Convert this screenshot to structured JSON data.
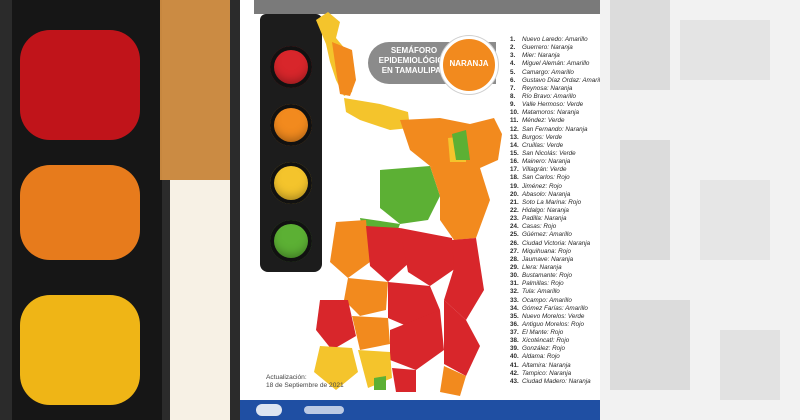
{
  "poster": {
    "title": "SEMÁFORO EPIDEMIOLÓGICO EN TAMAULIPAS",
    "status": "NARANJA",
    "update_label": "Actualización:",
    "update_date": "18 de Septiembre de 2021"
  },
  "colors": {
    "rojo": "#d8262b",
    "naranja": "#f28a1e",
    "amarillo": "#f4c42c",
    "verde": "#5cb034"
  },
  "traffic_light": {
    "lamps": [
      "red",
      "orange",
      "yellow",
      "green"
    ]
  },
  "municipalities": [
    {
      "n": "1.",
      "name": "Nuevo Laredo",
      "status": "Amarillo"
    },
    {
      "n": "2.",
      "name": "Guerrero",
      "status": "Naranja"
    },
    {
      "n": "3.",
      "name": "Mier",
      "status": "Naranja"
    },
    {
      "n": "4.",
      "name": "Miguel Alemán",
      "status": "Amarillo"
    },
    {
      "n": "5.",
      "name": "Camargo",
      "status": "Amarillo"
    },
    {
      "n": "6.",
      "name": "Gustavo Díaz Ordaz",
      "status": "Amarillo"
    },
    {
      "n": "7.",
      "name": "Reynosa",
      "status": "Naranja"
    },
    {
      "n": "8.",
      "name": "Río Bravo",
      "status": "Amarillo"
    },
    {
      "n": "9.",
      "name": "Valle Hermoso",
      "status": "Verde"
    },
    {
      "n": "10.",
      "name": "Matamoros",
      "status": "Naranja"
    },
    {
      "n": "11.",
      "name": "Méndez",
      "status": "Verde"
    },
    {
      "n": "12.",
      "name": "San Fernando",
      "status": "Naranja"
    },
    {
      "n": "13.",
      "name": "Burgos",
      "status": "Verde"
    },
    {
      "n": "14.",
      "name": "Cruillas",
      "status": "Verde"
    },
    {
      "n": "15.",
      "name": "San Nicolás",
      "status": "Verde"
    },
    {
      "n": "16.",
      "name": "Mainero",
      "status": "Naranja"
    },
    {
      "n": "17.",
      "name": "Villagrán",
      "status": "Verde"
    },
    {
      "n": "18.",
      "name": "San Carlos",
      "status": "Rojo"
    },
    {
      "n": "19.",
      "name": "Jiménez",
      "status": "Rojo"
    },
    {
      "n": "20.",
      "name": "Abasolo",
      "status": "Naranja"
    },
    {
      "n": "21.",
      "name": "Soto La Marina",
      "status": "Rojo"
    },
    {
      "n": "22.",
      "name": "Hidalgo",
      "status": "Naranja"
    },
    {
      "n": "23.",
      "name": "Padilla",
      "status": "Naranja"
    },
    {
      "n": "24.",
      "name": "Casas",
      "status": "Rojo"
    },
    {
      "n": "25.",
      "name": "Güémez",
      "status": "Amarillo"
    },
    {
      "n": "26.",
      "name": "Ciudad Victoria",
      "status": "Naranja"
    },
    {
      "n": "27.",
      "name": "Miquihuana",
      "status": "Rojo"
    },
    {
      "n": "28.",
      "name": "Jaumave",
      "status": "Naranja"
    },
    {
      "n": "29.",
      "name": "Llera",
      "status": "Naranja"
    },
    {
      "n": "30.",
      "name": "Bustamante",
      "status": "Rojo"
    },
    {
      "n": "31.",
      "name": "Palmillas",
      "status": "Rojo"
    },
    {
      "n": "32.",
      "name": "Tula",
      "status": "Amarillo"
    },
    {
      "n": "33.",
      "name": "Ocampo",
      "status": "Amarillo"
    },
    {
      "n": "34.",
      "name": "Gómez Farías",
      "status": "Amarillo"
    },
    {
      "n": "35.",
      "name": "Nuevo Morelos",
      "status": "Verde"
    },
    {
      "n": "36.",
      "name": "Antiguo Morelos",
      "status": "Rojo"
    },
    {
      "n": "37.",
      "name": "El Mante",
      "status": "Rojo"
    },
    {
      "n": "38.",
      "name": "Xicoténcatl",
      "status": "Rojo"
    },
    {
      "n": "39.",
      "name": "González",
      "status": "Rojo"
    },
    {
      "n": "40.",
      "name": "Aldama",
      "status": "Rojo"
    },
    {
      "n": "41.",
      "name": "Altamira",
      "status": "Naranja"
    },
    {
      "n": "42.",
      "name": "Tampico",
      "status": "Naranja"
    },
    {
      "n": "43.",
      "name": "Ciudad Madero",
      "status": "Naranja"
    }
  ]
}
